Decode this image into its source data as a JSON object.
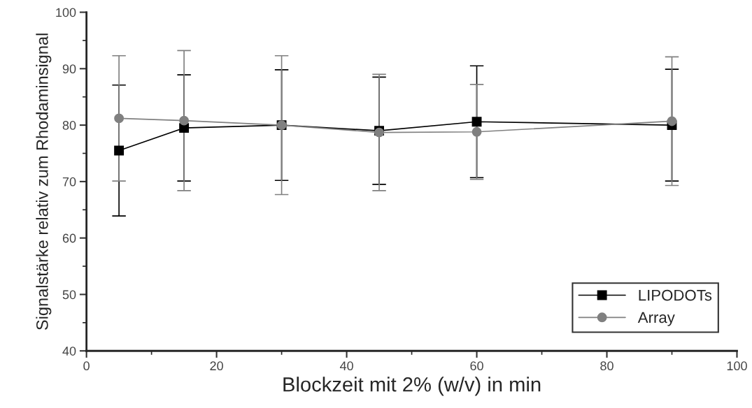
{
  "chart_data": {
    "type": "line",
    "xlabel": "Blockzeit mit 2% (w/v) in min",
    "ylabel": "Signalstärke relativ zum Rhodaminsignal",
    "x": [
      5,
      15,
      30,
      45,
      60,
      90
    ],
    "series": [
      {
        "name": "LIPODOTs",
        "color": "#000000",
        "marker": "square",
        "values": [
          75.5,
          79.5,
          80.0,
          79.0,
          80.6,
          80.0
        ],
        "errors": [
          11.6,
          9.4,
          9.8,
          9.5,
          9.9,
          9.9
        ]
      },
      {
        "name": "Array",
        "color": "#808080",
        "marker": "circle",
        "values": [
          81.2,
          80.8,
          80.0,
          78.7,
          78.8,
          80.7
        ],
        "errors": [
          11.1,
          12.4,
          12.3,
          10.3,
          8.4,
          11.4
        ]
      }
    ],
    "xlim": [
      0,
      100
    ],
    "xticks": [
      0,
      20,
      40,
      60,
      80,
      100
    ],
    "ylim": [
      40,
      100
    ],
    "yticks": [
      40,
      50,
      60,
      70,
      80,
      90,
      100
    ],
    "grid": false,
    "legend": "bottom right",
    "line_style": "solid"
  }
}
